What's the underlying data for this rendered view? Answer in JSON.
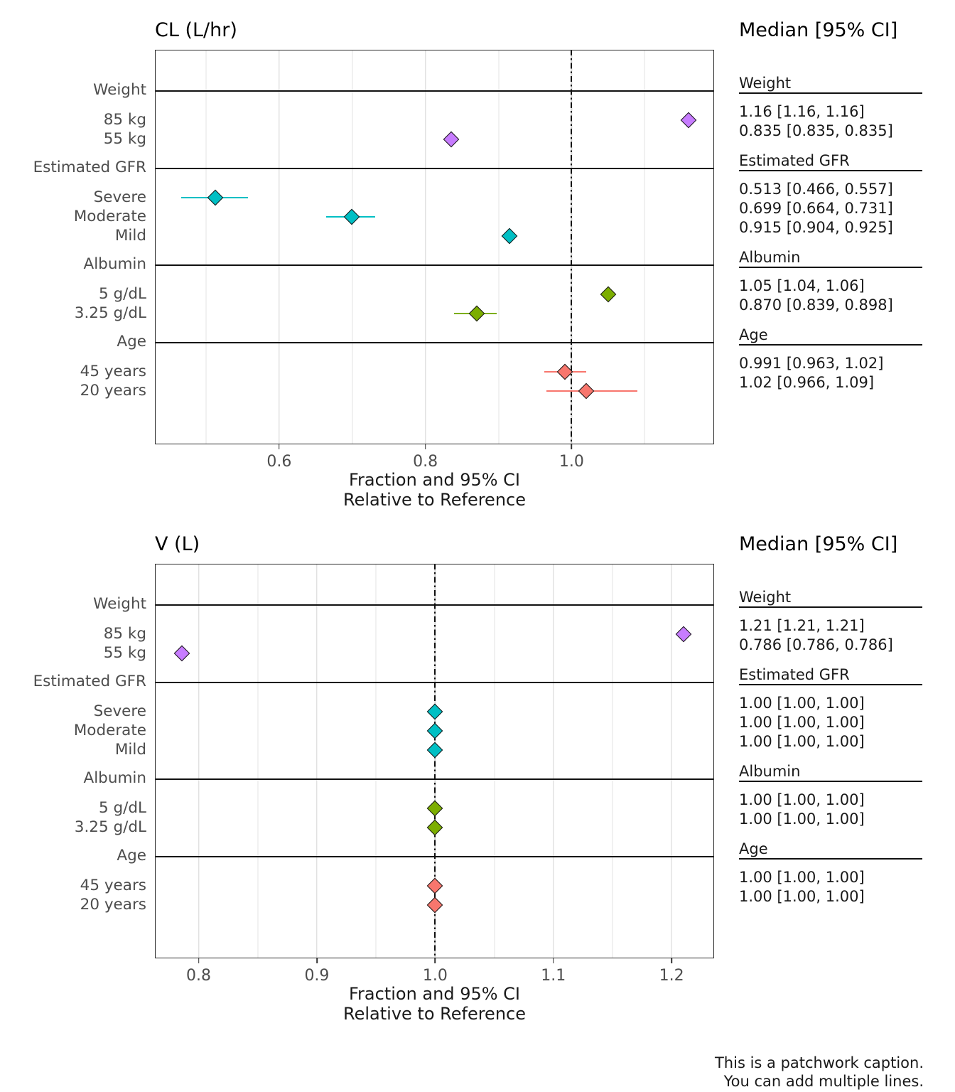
{
  "colors": {
    "weight": "#C77CFF",
    "estimated_gfr": "#00BFC4",
    "albumin": "#7CAE00",
    "age": "#F8766D",
    "grid_major": "#d4d4d4",
    "grid_minor": "#e3e3e3",
    "axis_text": "#4d4d4d",
    "text": "#1a1a1a"
  },
  "caption": {
    "lines": [
      "This is a patchwork caption.",
      "You can add multiple lines."
    ]
  },
  "chart_data": [
    {
      "type": "scatter",
      "variant": "forest-plot",
      "title": "CL (L/hr)",
      "right_title": "Median [95% CI]",
      "xlabel": [
        "Fraction and 95% CI",
        "Relative to Reference"
      ],
      "x_major_ticks": [
        0.6,
        0.8,
        1.0
      ],
      "x_tick_labels": [
        "0.6",
        "0.8",
        "1.0"
      ],
      "x_minor_gridlines": [
        0.5,
        0.7,
        0.9,
        1.1
      ],
      "xlim": [
        0.43,
        1.195
      ],
      "ref_line": 1.0,
      "legend_position": "none",
      "grid": true,
      "sections": [
        {
          "header": "Weight",
          "color": "#C77CFF",
          "rows": [
            {
              "label": "85 kg",
              "median": 1.16,
              "lo": 1.16,
              "hi": 1.16,
              "ci_text": "1.16 [1.16, 1.16]"
            },
            {
              "label": "55 kg",
              "median": 0.835,
              "lo": 0.835,
              "hi": 0.835,
              "ci_text": "0.835 [0.835, 0.835]"
            }
          ]
        },
        {
          "header": "Estimated GFR",
          "color": "#00BFC4",
          "rows": [
            {
              "label": "Severe",
              "median": 0.513,
              "lo": 0.466,
              "hi": 0.557,
              "ci_text": "0.513 [0.466, 0.557]"
            },
            {
              "label": "Moderate",
              "median": 0.699,
              "lo": 0.664,
              "hi": 0.731,
              "ci_text": "0.699 [0.664, 0.731]"
            },
            {
              "label": "Mild",
              "median": 0.915,
              "lo": 0.904,
              "hi": 0.925,
              "ci_text": "0.915 [0.904, 0.925]"
            }
          ]
        },
        {
          "header": "Albumin",
          "color": "#7CAE00",
          "rows": [
            {
              "label": "5 g/dL",
              "median": 1.05,
              "lo": 1.04,
              "hi": 1.06,
              "ci_text": "1.05 [1.04, 1.06]"
            },
            {
              "label": "3.25 g/dL",
              "median": 0.87,
              "lo": 0.839,
              "hi": 0.898,
              "ci_text": "0.870 [0.839, 0.898]"
            }
          ]
        },
        {
          "header": "Age",
          "color": "#F8766D",
          "rows": [
            {
              "label": "45 years",
              "median": 0.991,
              "lo": 0.963,
              "hi": 1.02,
              "ci_text": "0.991 [0.963, 1.02]"
            },
            {
              "label": "20 years",
              "median": 1.02,
              "lo": 0.966,
              "hi": 1.09,
              "ci_text": "1.02 [0.966, 1.09]"
            }
          ]
        }
      ]
    },
    {
      "type": "scatter",
      "variant": "forest-plot",
      "title": "V (L)",
      "right_title": "Median [95% CI]",
      "xlabel": [
        "Fraction and 95% CI",
        "Relative to Reference"
      ],
      "x_major_ticks": [
        0.8,
        0.9,
        1.0,
        1.1,
        1.2
      ],
      "x_tick_labels": [
        "0.8",
        "0.9",
        "1.0",
        "1.1",
        "1.2"
      ],
      "x_minor_gridlines": [
        0.85,
        0.95,
        1.05,
        1.15
      ],
      "xlim": [
        0.763,
        1.236
      ],
      "ref_line": 1.0,
      "legend_position": "none",
      "grid": true,
      "sections": [
        {
          "header": "Weight",
          "color": "#C77CFF",
          "rows": [
            {
              "label": "85 kg",
              "median": 1.21,
              "lo": 1.21,
              "hi": 1.21,
              "ci_text": "1.21 [1.21, 1.21]"
            },
            {
              "label": "55 kg",
              "median": 0.786,
              "lo": 0.786,
              "hi": 0.786,
              "ci_text": "0.786 [0.786, 0.786]"
            }
          ]
        },
        {
          "header": "Estimated GFR",
          "color": "#00BFC4",
          "rows": [
            {
              "label": "Severe",
              "median": 1.0,
              "lo": 1.0,
              "hi": 1.0,
              "ci_text": "1.00 [1.00, 1.00]"
            },
            {
              "label": "Moderate",
              "median": 1.0,
              "lo": 1.0,
              "hi": 1.0,
              "ci_text": "1.00 [1.00, 1.00]"
            },
            {
              "label": "Mild",
              "median": 1.0,
              "lo": 1.0,
              "hi": 1.0,
              "ci_text": "1.00 [1.00, 1.00]"
            }
          ]
        },
        {
          "header": "Albumin",
          "color": "#7CAE00",
          "rows": [
            {
              "label": "5 g/dL",
              "median": 1.0,
              "lo": 1.0,
              "hi": 1.0,
              "ci_text": "1.00 [1.00, 1.00]"
            },
            {
              "label": "3.25 g/dL",
              "median": 1.0,
              "lo": 1.0,
              "hi": 1.0,
              "ci_text": "1.00 [1.00, 1.00]"
            }
          ]
        },
        {
          "header": "Age",
          "color": "#F8766D",
          "rows": [
            {
              "label": "45 years",
              "median": 1.0,
              "lo": 1.0,
              "hi": 1.0,
              "ci_text": "1.00 [1.00, 1.00]"
            },
            {
              "label": "20 years",
              "median": 1.0,
              "lo": 1.0,
              "hi": 1.0,
              "ci_text": "1.00 [1.00, 1.00]"
            }
          ]
        }
      ]
    }
  ]
}
